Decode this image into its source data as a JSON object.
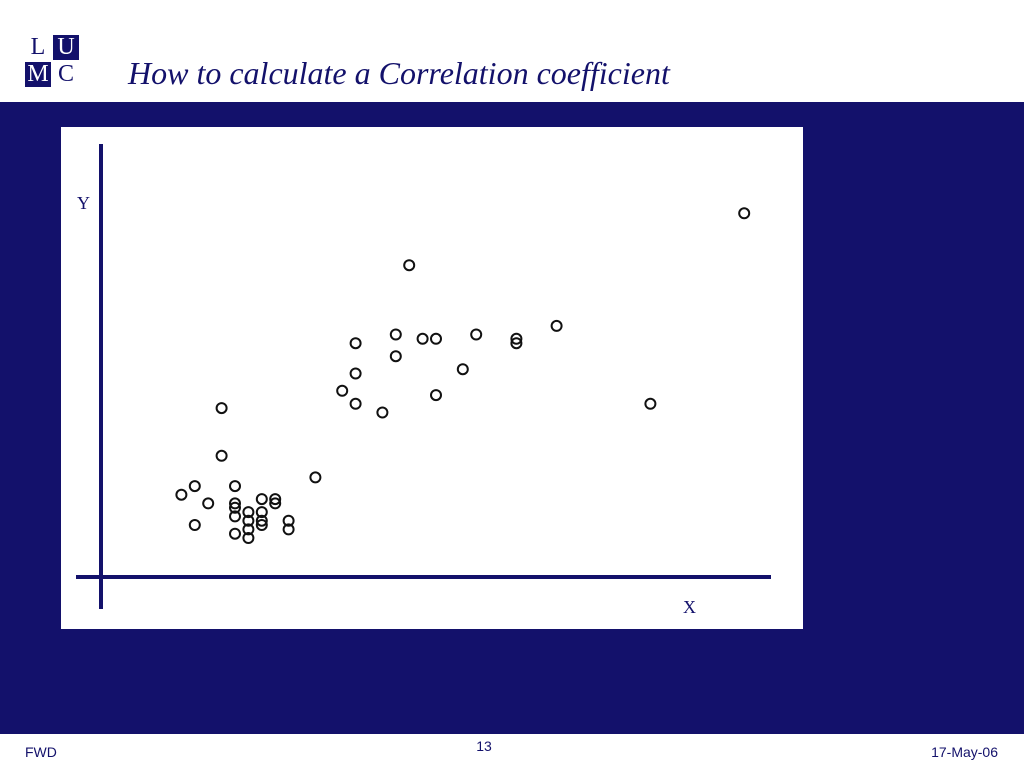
{
  "logo": {
    "letters": [
      "L",
      "U",
      "M",
      "C"
    ]
  },
  "title": "How to calculate a Correlation coefficient",
  "chart_data": {
    "type": "scatter",
    "title": "",
    "xlabel": "X",
    "ylabel": "Y",
    "xlim": [
      0,
      100
    ],
    "ylim": [
      0,
      100
    ],
    "grid": false,
    "legend": "none",
    "marker_color": "#111111",
    "axis_color": "#13116b",
    "points": [
      [
        12,
        19
      ],
      [
        14,
        21
      ],
      [
        16,
        17
      ],
      [
        18,
        28
      ],
      [
        14,
        12
      ],
      [
        18,
        39
      ],
      [
        20,
        21
      ],
      [
        20,
        17
      ],
      [
        20,
        16
      ],
      [
        20,
        14
      ],
      [
        20,
        10
      ],
      [
        22,
        13
      ],
      [
        22,
        15
      ],
      [
        22,
        11
      ],
      [
        22,
        9
      ],
      [
        24,
        13
      ],
      [
        24,
        15
      ],
      [
        24,
        12
      ],
      [
        24,
        18
      ],
      [
        26,
        18
      ],
      [
        26,
        17
      ],
      [
        28,
        13
      ],
      [
        28,
        11
      ],
      [
        32,
        23
      ],
      [
        36,
        43
      ],
      [
        38,
        54
      ],
      [
        38,
        47
      ],
      [
        38,
        40
      ],
      [
        42,
        38
      ],
      [
        44,
        51
      ],
      [
        44,
        56
      ],
      [
        46,
        72
      ],
      [
        48,
        55
      ],
      [
        50,
        55
      ],
      [
        50,
        42
      ],
      [
        54,
        48
      ],
      [
        56,
        56
      ],
      [
        62,
        55
      ],
      [
        62,
        54
      ],
      [
        68,
        58
      ],
      [
        82,
        40
      ],
      [
        96,
        84
      ]
    ]
  },
  "footer": {
    "left": "FWD",
    "page": "13",
    "date": "17-May-06"
  }
}
